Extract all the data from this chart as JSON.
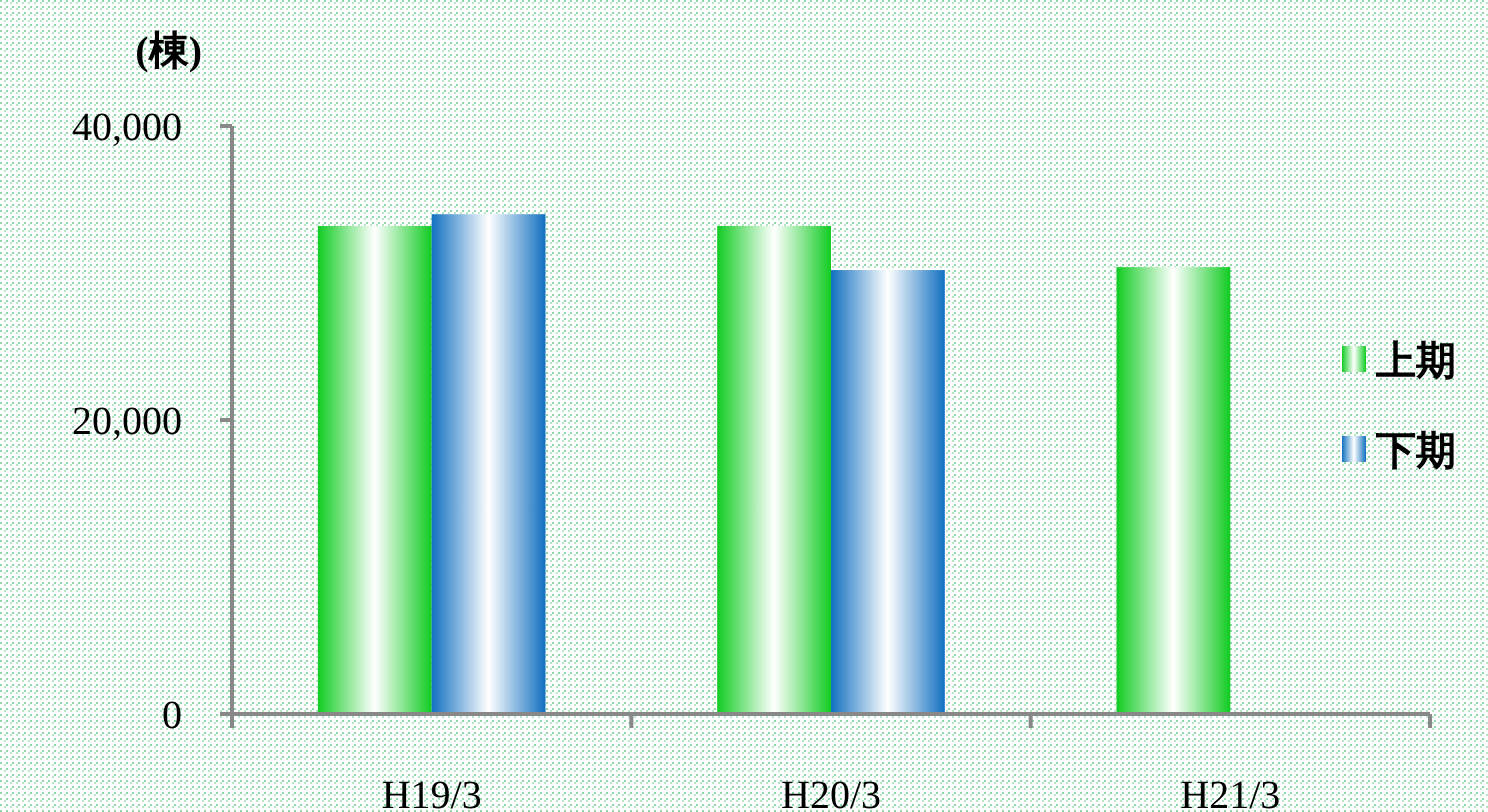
{
  "chart_data": {
    "type": "bar",
    "ylabel": "(棟)",
    "categories": [
      "H19/3",
      "H20/3",
      "H21/3"
    ],
    "series": [
      {
        "name": "上期",
        "color": "#11cc22",
        "values": [
          33200,
          33200,
          30400
        ]
      },
      {
        "name": "下期",
        "color": "#1170c0",
        "values": [
          34000,
          30200,
          null
        ]
      }
    ],
    "ylim": [
      0,
      40000
    ],
    "yticks": [
      0,
      {
        "value": 20000,
        "label": "20,000"
      },
      {
        "value": 40000,
        "label": "40,000"
      }
    ],
    "legend": "right"
  }
}
